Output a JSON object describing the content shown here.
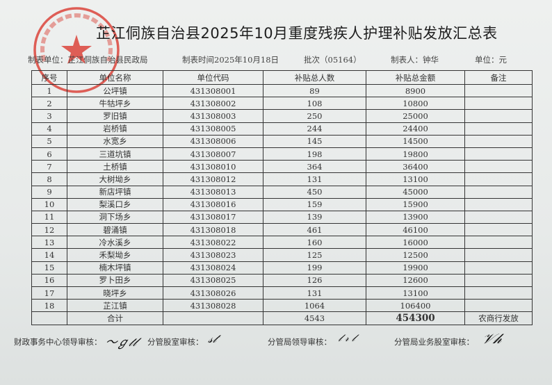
{
  "title": "芷江侗族自治县2025年10月重度残疾人护理补贴发放汇总表",
  "meta": {
    "unit": "制表单位：芷江侗族自治县民政局",
    "date": "制表时间2025年10月18日",
    "batch": "批次（05164）",
    "maker": "制表人：钟华",
    "currency": "单位：元"
  },
  "seal": {
    "text": "芷江侗族自治县民政局",
    "color": "#d9392f"
  },
  "table": {
    "headers": [
      "序号",
      "单位名称",
      "单位代码",
      "补贴总人数",
      "补贴总金额",
      "备注"
    ],
    "rows": [
      [
        "1",
        "公坪镇",
        "431308001",
        "89",
        "8900",
        ""
      ],
      [
        "2",
        "牛牯坪乡",
        "431308002",
        "108",
        "10800",
        ""
      ],
      [
        "3",
        "罗旧镇",
        "431308003",
        "250",
        "25000",
        ""
      ],
      [
        "4",
        "岩桥镇",
        "431308005",
        "244",
        "24400",
        ""
      ],
      [
        "5",
        "水宽乡",
        "431308006",
        "145",
        "14500",
        ""
      ],
      [
        "6",
        "三道坑镇",
        "431308007",
        "198",
        "19800",
        ""
      ],
      [
        "7",
        "土桥镇",
        "431308010",
        "364",
        "36400",
        ""
      ],
      [
        "8",
        "大树坳乡",
        "431308012",
        "131",
        "13100",
        ""
      ],
      [
        "9",
        "新店坪镇",
        "431308013",
        "450",
        "45000",
        ""
      ],
      [
        "10",
        "梨溪口乡",
        "431308016",
        "159",
        "15900",
        ""
      ],
      [
        "11",
        "洞下场乡",
        "431308017",
        "139",
        "13900",
        ""
      ],
      [
        "12",
        "碧涌镇",
        "431308018",
        "461",
        "46100",
        ""
      ],
      [
        "13",
        "冷水溪乡",
        "431308022",
        "160",
        "16000",
        ""
      ],
      [
        "14",
        "禾梨坳乡",
        "431308023",
        "125",
        "12500",
        ""
      ],
      [
        "15",
        "楠木坪镇",
        "431308024",
        "199",
        "19900",
        ""
      ],
      [
        "16",
        "罗卜田乡",
        "431308025",
        "126",
        "12600",
        ""
      ],
      [
        "17",
        "晓坪乡",
        "431308026",
        "131",
        "13100",
        ""
      ],
      [
        "18",
        "芷江镇",
        "431308028",
        "1064",
        "106400",
        ""
      ]
    ],
    "total": {
      "label": "合计",
      "people": "4543",
      "amount": "454300",
      "note": "农商行发放"
    }
  },
  "footer": {
    "finance": "财政事务中心领导审核：",
    "section": "分管股室审核：",
    "bureau": "分管局领导审核：",
    "business": "分管局业务股室审核："
  }
}
